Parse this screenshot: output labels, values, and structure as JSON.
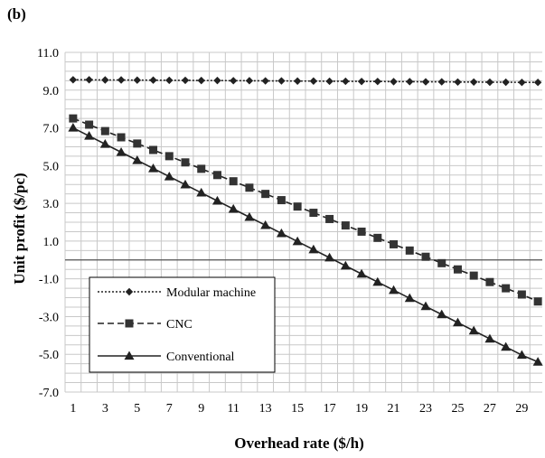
{
  "panel_label": "(b)",
  "chart_data": {
    "type": "line",
    "xlabel": "Overhead rate ($/h)",
    "ylabel": "Unit profit ($/pc)",
    "x": [
      1,
      2,
      3,
      4,
      5,
      6,
      7,
      8,
      9,
      10,
      11,
      12,
      13,
      14,
      15,
      16,
      17,
      18,
      19,
      20,
      21,
      22,
      23,
      24,
      25,
      26,
      27,
      28,
      29,
      30
    ],
    "x_tick_labels": [
      "1",
      "3",
      "5",
      "7",
      "9",
      "11",
      "13",
      "15",
      "17",
      "19",
      "21",
      "23",
      "25",
      "27",
      "29"
    ],
    "y_tick_labels": [
      "11.0",
      "9.0",
      "7.0",
      "5.0",
      "3.0",
      "1.0",
      "-1.0",
      "-3.0",
      "-5.0",
      "-7.0"
    ],
    "ylim": [
      -7.0,
      11.0
    ],
    "grid": true,
    "legend": "bottom-left",
    "series": [
      {
        "name": "Modular machine",
        "line_style": "dotted",
        "marker": "diamond",
        "values": [
          9.55,
          9.55,
          9.54,
          9.54,
          9.53,
          9.53,
          9.52,
          9.52,
          9.51,
          9.51,
          9.5,
          9.5,
          9.49,
          9.49,
          9.48,
          9.48,
          9.47,
          9.47,
          9.46,
          9.46,
          9.45,
          9.45,
          9.44,
          9.44,
          9.43,
          9.43,
          9.42,
          9.42,
          9.41,
          9.41
        ]
      },
      {
        "name": "CNC",
        "line_style": "dashed",
        "marker": "square",
        "values": [
          7.5,
          7.17,
          6.83,
          6.5,
          6.17,
          5.83,
          5.5,
          5.17,
          4.83,
          4.5,
          4.17,
          3.83,
          3.5,
          3.17,
          2.83,
          2.5,
          2.17,
          1.83,
          1.5,
          1.17,
          0.83,
          0.5,
          0.17,
          -0.17,
          -0.5,
          -0.83,
          -1.17,
          -1.5,
          -1.83,
          -2.2
        ]
      },
      {
        "name": "Conventional",
        "line_style": "solid",
        "marker": "triangle",
        "values": [
          7.0,
          6.57,
          6.14,
          5.71,
          5.28,
          4.85,
          4.42,
          3.99,
          3.56,
          3.13,
          2.7,
          2.27,
          1.84,
          1.41,
          0.98,
          0.55,
          0.12,
          -0.31,
          -0.74,
          -1.17,
          -1.6,
          -2.03,
          -2.46,
          -2.89,
          -3.32,
          -3.75,
          -4.18,
          -4.61,
          -5.04,
          -5.4
        ]
      }
    ]
  }
}
